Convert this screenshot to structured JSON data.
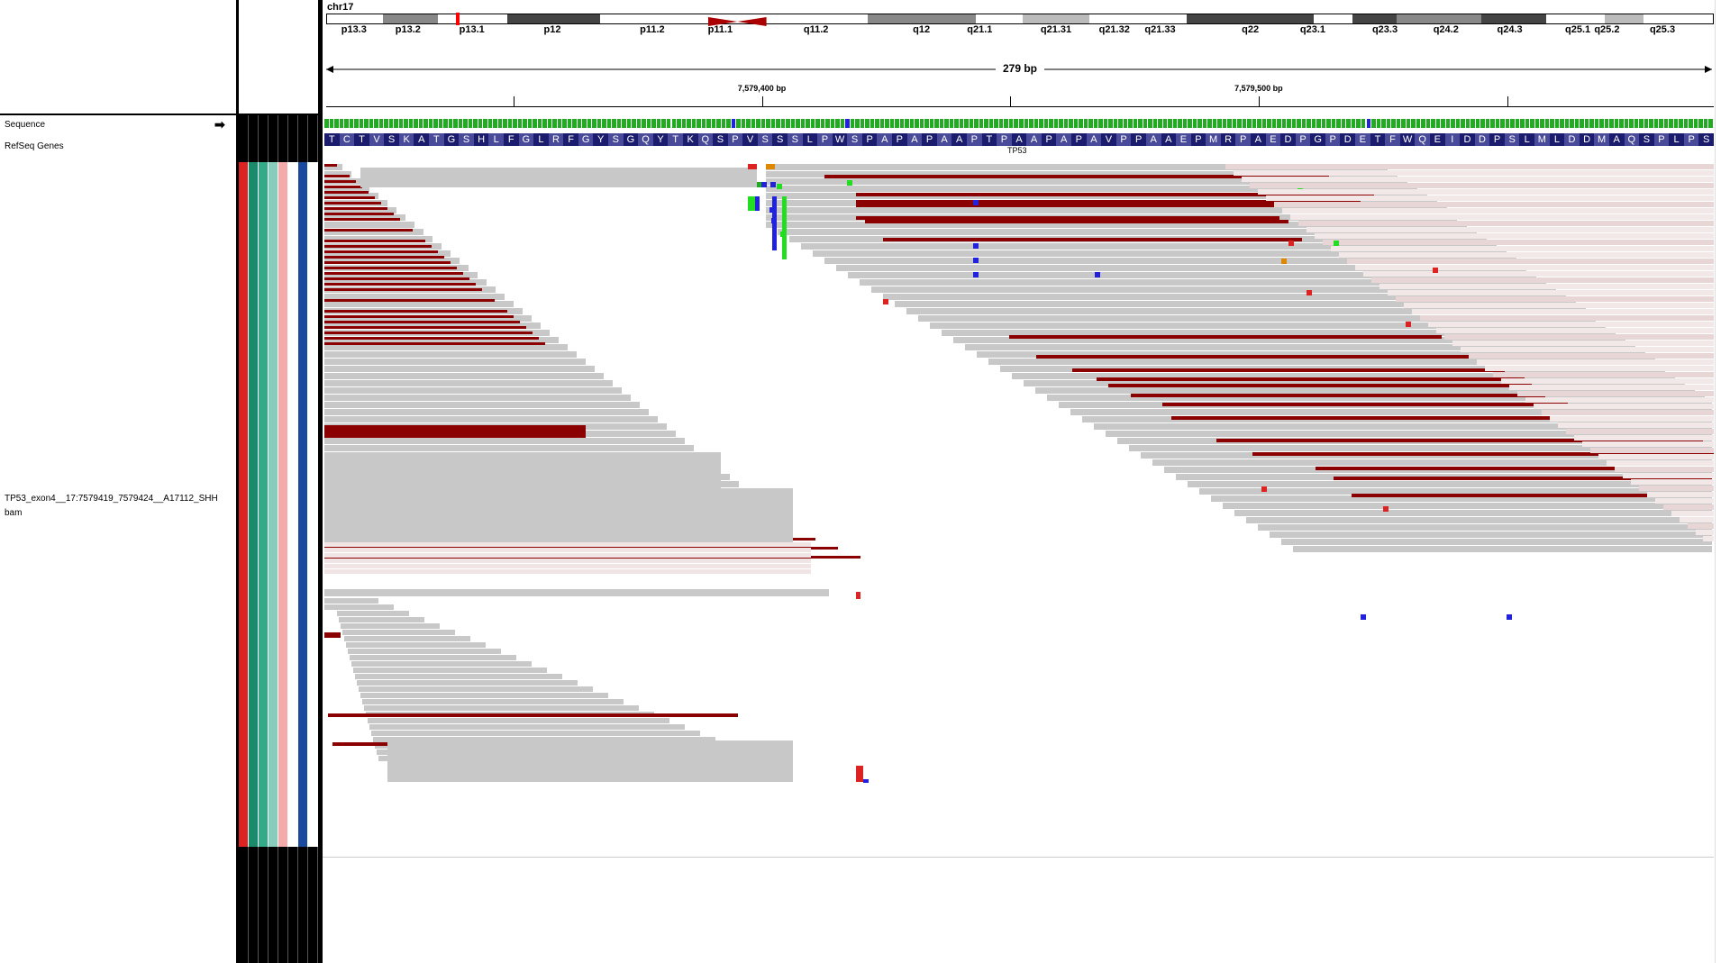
{
  "chromosome": {
    "name": "chr17",
    "bands": [
      {
        "label": "p13.3",
        "start": 0,
        "end": 0.04,
        "color": "#ffffff"
      },
      {
        "label": "p13.2",
        "start": 0.04,
        "end": 0.08,
        "color": "#888888"
      },
      {
        "label": "p13.1",
        "start": 0.08,
        "end": 0.13,
        "color": "#ffffff"
      },
      {
        "label": "p12",
        "start": 0.13,
        "end": 0.197,
        "color": "#444444"
      },
      {
        "label": "p11.2",
        "start": 0.197,
        "end": 0.275,
        "color": "#ffffff"
      },
      {
        "label": "p11.1",
        "start": 0.275,
        "end": 0.317,
        "color": "#aa0000"
      },
      {
        "label": "q11.2",
        "start": 0.317,
        "end": 0.39,
        "color": "#ffffff"
      },
      {
        "label": "q12",
        "start": 0.39,
        "end": 0.468,
        "color": "#888888"
      },
      {
        "label": "q21.1",
        "start": 0.468,
        "end": 0.502,
        "color": "#ffffff"
      },
      {
        "label": "q21.31",
        "start": 0.502,
        "end": 0.55,
        "color": "#bbbbbb"
      },
      {
        "label": "q21.32",
        "start": 0.55,
        "end": 0.585,
        "color": "#ffffff"
      },
      {
        "label": "q21.33",
        "start": 0.585,
        "end": 0.62,
        "color": "#ffffff"
      },
      {
        "label": "q22",
        "start": 0.62,
        "end": 0.712,
        "color": "#444444"
      },
      {
        "label": "q23.1",
        "start": 0.712,
        "end": 0.74,
        "color": "#ffffff"
      },
      {
        "label": "q23.3",
        "start": 0.74,
        "end": 0.772,
        "color": "#444444"
      },
      {
        "label": "q24.2",
        "start": 0.772,
        "end": 0.833,
        "color": "#888888"
      },
      {
        "label": "q24.3",
        "start": 0.833,
        "end": 0.88,
        "color": "#444444"
      },
      {
        "label": "q25.1",
        "start": 0.88,
        "end": 0.922,
        "color": "#ffffff"
      },
      {
        "label": "q25.2",
        "start": 0.922,
        "end": 0.95,
        "color": "#bbbbbb"
      },
      {
        "label": "q25.3",
        "start": 0.95,
        "end": 1.0,
        "color": "#ffffff"
      }
    ],
    "band_label_positions": [
      0.02,
      0.059,
      0.105,
      0.163,
      0.235,
      0.284,
      0.353,
      0.429,
      0.471,
      0.526,
      0.568,
      0.601,
      0.666,
      0.711,
      0.763,
      0.807,
      0.853,
      0.902,
      0.923,
      0.963
    ],
    "highlight_pos": 0.093
  },
  "ruler": {
    "span_label": "279 bp",
    "ticks": [
      {
        "label": "",
        "pos": 0.135
      },
      {
        "label": "7,579,400 bp",
        "pos": 0.314
      },
      {
        "label": "",
        "pos": 0.493
      },
      {
        "label": "7,579,500 bp",
        "pos": 0.672
      },
      {
        "label": "",
        "pos": 0.851
      }
    ]
  },
  "tracks": {
    "sequence_label": "Sequence",
    "refseq_label": "RefSeq Genes",
    "bam_label_line1": "TP53_exon4__17:7579419_7579424__A17112_SHH",
    "bam_label_line2": "bam",
    "gene_name": "TP53"
  },
  "amino_acids": "TCTVSKATGSHLFGLRFGYSGQYTKQSPVSSSLPWSPAPAPAAPTPAAPAPAVPPAAEPMRPAEDPGPDETFWQEIDDPSLMLDDMAQSPLPS",
  "attribute_columns": [
    {
      "color": "#dd2222"
    },
    {
      "color": "#1a8a6a"
    },
    {
      "color": "#33aa88"
    },
    {
      "color": "#88ccbb"
    },
    {
      "color": "#f4aaaa"
    },
    {
      "color": "#ffffff"
    },
    {
      "color": "#1a4aa0"
    },
    {
      "color": "#ffffff"
    }
  ],
  "colors": {
    "read_gray": "#c8c8c8",
    "read_red": "#8b0000",
    "aa_dark": "#1c1c6e",
    "aa_light": "#4a4a9a"
  }
}
